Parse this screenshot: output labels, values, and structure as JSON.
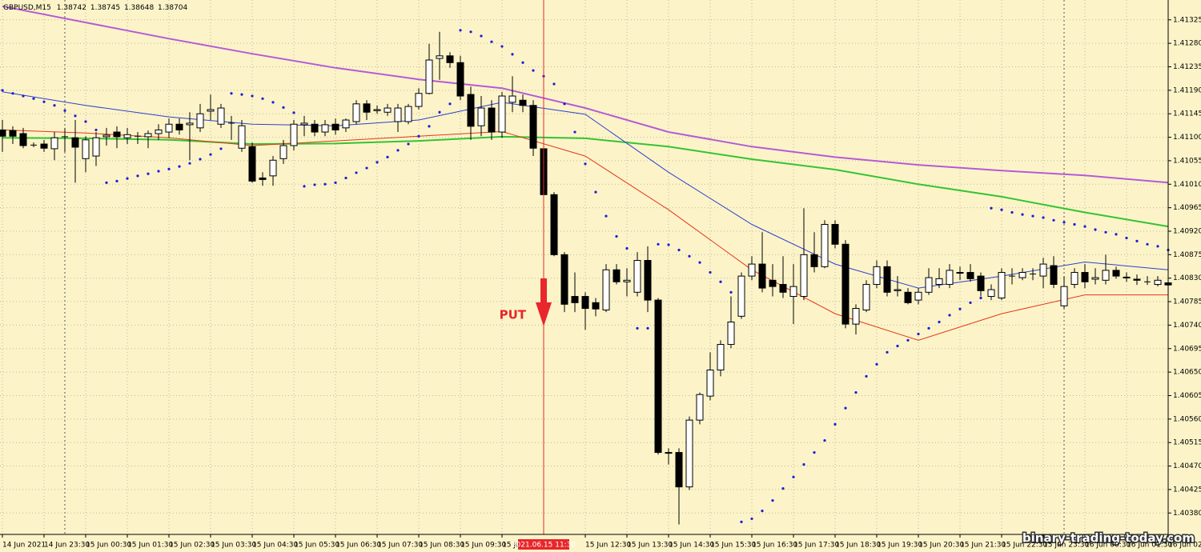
{
  "chart_data": {
    "type": "candlestick",
    "title": "GBPUSD,M15",
    "quote": [
      1.38742,
      1.38745,
      1.38648,
      1.38704
    ],
    "watermark": "binary-trading-today.com",
    "background": "#fcf4c8",
    "grid": true,
    "categories": [
      "14 Jun 2021",
      null,
      null,
      null,
      "14 Jun 23:30",
      null,
      null,
      null,
      "15 Jun 00:30",
      null,
      null,
      null,
      "15 Jun 01:30",
      null,
      null,
      null,
      "15 Jun 02:30",
      null,
      null,
      null,
      "15 Jun 03:30",
      null,
      null,
      null,
      "15 Jun 04:30",
      null,
      null,
      null,
      "15 Jun 05:30",
      null,
      null,
      null,
      "15 Jun 06:30",
      null,
      null,
      null,
      "15 Jun 07:30",
      null,
      null,
      null,
      "15 Jun 08:30",
      null,
      null,
      null,
      "15 Jun 09:30",
      null,
      null,
      null,
      "15 Jun 10:30",
      null,
      null,
      null,
      "2021.06.15 11:30",
      null,
      null,
      null,
      "15 Jun 12:30",
      null,
      null,
      null,
      "15 Jun 13:30",
      null,
      null,
      null,
      "15 Jun 14:30",
      null,
      null,
      null,
      "15 Jun 15:30",
      null,
      null,
      null,
      "15 Jun 16:30",
      null,
      null,
      null,
      "15 Jun 17:30",
      null,
      null,
      null,
      "15 Jun 18:30",
      null,
      null,
      null,
      "15 Jun 19:30",
      null,
      null,
      null,
      "15 Jun 20:30",
      null,
      null,
      null,
      "15 Jun 21:30",
      null,
      null,
      null,
      "15 Jun 22:30",
      null,
      null,
      null,
      "15 Jun 23:30",
      null,
      null,
      null,
      "16 Jun 00:30",
      null,
      null,
      null,
      "16 Jun 01:30",
      null,
      null,
      null,
      "16 Jun 02:30"
    ],
    "open": [
      1.41114,
      1.41113,
      1.41107,
      1.41085,
      1.41087,
      1.41078,
      1.41101,
      1.41099,
      1.41059,
      1.41064,
      1.41101,
      1.4111,
      1.41099,
      1.41102,
      1.41101,
      1.41107,
      1.4111,
      1.41125,
      1.41124,
      1.41118,
      1.4115,
      1.41125,
      1.41127,
      1.41079,
      1.41082,
      1.41022,
      1.41026,
      1.41059,
      1.41084,
      1.41124,
      1.41125,
      1.4111,
      1.41125,
      1.41118,
      1.4113,
      1.41164,
      1.41151,
      1.41148,
      1.4113,
      1.4113,
      1.41159,
      1.41184,
      1.41251,
      1.41256,
      1.41243,
      1.41182,
      1.41122,
      1.41156,
      1.4111,
      1.41167,
      1.41171,
      1.41161,
      1.41078,
      1.4099,
      1.40875,
      1.40795,
      1.40795,
      1.40783,
      1.40769,
      1.40846,
      1.40823,
      1.40803,
      1.40864,
      1.40788,
      1.40496,
      1.40496,
      1.4043,
      1.40558,
      1.40604,
      1.40654,
      1.40703,
      1.40757,
      1.40834,
      1.40857,
      1.40826,
      1.40818,
      1.40795,
      1.40795,
      1.40875,
      1.40852,
      1.40933,
      1.40895,
      1.40742,
      1.40769,
      1.40818,
      1.40852,
      1.40806,
      1.40803,
      1.40788,
      1.40803,
      1.40818,
      1.40818,
      1.40841,
      1.40841,
      1.40834,
      1.40795,
      1.40792,
      1.40834,
      1.40831,
      1.40838,
      1.40834,
      1.40854,
      1.40777,
      1.40818,
      1.40841,
      1.40828,
      1.40826,
      1.40845,
      1.40832,
      1.40828,
      1.40823,
      1.40818,
      1.40821
    ],
    "high": [
      1.41133,
      1.41121,
      1.41118,
      1.4109,
      1.41095,
      1.4111,
      1.41118,
      1.41133,
      1.41102,
      1.4111,
      1.41118,
      1.41121,
      1.41118,
      1.4111,
      1.41113,
      1.41125,
      1.41136,
      1.41136,
      1.41148,
      1.41164,
      1.41182,
      1.41164,
      1.41141,
      1.41133,
      1.4109,
      1.41033,
      1.41064,
      1.41095,
      1.41133,
      1.41141,
      1.41133,
      1.41133,
      1.41136,
      1.41136,
      1.41171,
      1.41171,
      1.41161,
      1.41164,
      1.41164,
      1.41164,
      1.41194,
      1.41279,
      1.41302,
      1.41263,
      1.41256,
      1.41197,
      1.41179,
      1.41171,
      1.41187,
      1.41217,
      1.41182,
      1.41171,
      1.41087,
      1.40995,
      1.4088,
      1.40841,
      1.40803,
      1.40792,
      1.40857,
      1.40857,
      1.40849,
      1.4088,
      1.40891,
      1.40792,
      1.40504,
      1.40504,
      1.40565,
      1.40611,
      1.40688,
      1.40711,
      1.40795,
      1.40841,
      1.40872,
      1.40918,
      1.40857,
      1.40872,
      1.40857,
      1.40964,
      1.40918,
      1.40941,
      1.40941,
      1.40903,
      1.4078,
      1.40826,
      1.40864,
      1.40864,
      1.40834,
      1.40811,
      1.40811,
      1.40849,
      1.40849,
      1.40857,
      1.40852,
      1.40857,
      1.40841,
      1.40818,
      1.40849,
      1.40849,
      1.40849,
      1.40849,
      1.40869,
      1.40872,
      1.40834,
      1.40849,
      1.40857,
      1.40849,
      1.40875,
      1.40852,
      1.40841,
      1.40837,
      1.40834,
      1.40834,
      1.40834
    ],
    "low": [
      1.41072,
      1.41087,
      1.41079,
      1.41081,
      1.41072,
      1.41056,
      1.41072,
      1.41013,
      1.41033,
      1.41045,
      1.41084,
      1.41079,
      1.41087,
      1.41087,
      1.41079,
      1.41095,
      1.41099,
      1.41105,
      1.41056,
      1.4111,
      1.41133,
      1.41118,
      1.41095,
      1.41072,
      1.41013,
      1.41007,
      1.41007,
      1.41049,
      1.41075,
      1.41102,
      1.41102,
      1.41102,
      1.41105,
      1.4111,
      1.41125,
      1.41133,
      1.41145,
      1.41141,
      1.4111,
      1.41125,
      1.41153,
      1.41182,
      1.4121,
      1.41233,
      1.41171,
      1.41095,
      1.41102,
      1.41095,
      1.41099,
      1.41148,
      1.41148,
      1.41064,
      1.40987,
      1.40872,
      1.40765,
      1.40765,
      1.40731,
      1.40757,
      1.40765,
      1.40818,
      1.40795,
      1.40795,
      1.40765,
      1.40492,
      1.40473,
      1.40358,
      1.40424,
      1.4055,
      1.40596,
      1.40642,
      1.40696,
      1.40752,
      1.40826,
      1.40803,
      1.40795,
      1.40792,
      1.40742,
      1.40788,
      1.40841,
      1.40849,
      1.40887,
      1.40734,
      1.40722,
      1.40765,
      1.40811,
      1.40795,
      1.40795,
      1.4078,
      1.4078,
      1.40798,
      1.40811,
      1.40811,
      1.40826,
      1.40823,
      1.40795,
      1.40788,
      1.40788,
      1.40818,
      1.40826,
      1.40826,
      1.40811,
      1.40811,
      1.40772,
      1.40811,
      1.40811,
      1.40818,
      1.40818,
      1.40829,
      1.40823,
      1.40817,
      1.40817,
      1.40814,
      1.40795
    ],
    "close": [
      1.41102,
      1.41102,
      1.41084,
      1.41085,
      1.41079,
      1.41099,
      1.41101,
      1.41081,
      1.41095,
      1.41099,
      1.41104,
      1.41101,
      1.41105,
      1.41102,
      1.41107,
      1.41114,
      1.41125,
      1.41114,
      1.41127,
      1.41145,
      1.41153,
      1.41156,
      1.41127,
      1.41122,
      1.41016,
      1.41019,
      1.41056,
      1.41084,
      1.41125,
      1.41127,
      1.4111,
      1.41124,
      1.41114,
      1.41133,
      1.41164,
      1.41148,
      1.41153,
      1.41156,
      1.41156,
      1.41159,
      1.41184,
      1.41248,
      1.41256,
      1.41243,
      1.41179,
      1.41121,
      1.41156,
      1.4111,
      1.41179,
      1.41179,
      1.41161,
      1.41079,
      1.4099,
      1.40875,
      1.4078,
      1.40783,
      1.40772,
      1.40771,
      1.40846,
      1.40823,
      1.40826,
      1.40864,
      1.40788,
      1.40496,
      1.40495,
      1.4043,
      1.40558,
      1.40607,
      1.40654,
      1.40703,
      1.40746,
      1.40834,
      1.40857,
      1.40811,
      1.40814,
      1.40803,
      1.40814,
      1.40875,
      1.40852,
      1.40933,
      1.40895,
      1.40742,
      1.40772,
      1.40818,
      1.40852,
      1.40803,
      1.40808,
      1.40783,
      1.40803,
      1.40831,
      1.40829,
      1.40845,
      1.4084,
      1.40829,
      1.40806,
      1.40808,
      1.40841,
      1.40834,
      1.40841,
      1.40838,
      1.40857,
      1.40818,
      1.40814,
      1.40841,
      1.40823,
      1.40831,
      1.40845,
      1.40834,
      1.40831,
      1.40826,
      1.40823,
      1.40826,
      1.40817
    ],
    "up_color": "#ffffff",
    "down_color": "#000000",
    "lines": [
      {
        "color": "#b65ad8",
        "width": 2,
        "x": [
          0,
          8,
          16,
          24,
          32,
          40,
          48,
          56,
          64,
          72,
          80,
          88,
          96,
          104,
          112
        ],
        "values": [
          1.41351,
          1.4132,
          1.41289,
          1.4126,
          1.41233,
          1.41211,
          1.41194,
          1.41156,
          1.4111,
          1.41082,
          1.41062,
          1.41047,
          1.41036,
          1.41027,
          1.41013
        ]
      },
      {
        "color": "#33c433",
        "width": 2,
        "x": [
          0,
          8,
          16,
          24,
          32,
          40,
          48,
          56,
          64,
          72,
          80,
          88,
          96,
          104,
          112
        ],
        "values": [
          1.41099,
          1.41098,
          1.41095,
          1.41087,
          1.41088,
          1.41093,
          1.41101,
          1.41098,
          1.41082,
          1.41058,
          1.41038,
          1.4101,
          1.40986,
          1.40956,
          1.40929
        ]
      },
      {
        "color": "#2d3fd2",
        "width": 1,
        "x": [
          0,
          8,
          16,
          24,
          32,
          40,
          48,
          56,
          64,
          72,
          80,
          88,
          96,
          104,
          112
        ],
        "values": [
          1.41187,
          1.41161,
          1.41139,
          1.41125,
          1.41122,
          1.41133,
          1.41167,
          1.41144,
          1.41033,
          1.40933,
          1.40857,
          1.40811,
          1.40834,
          1.40861,
          1.40846
        ]
      },
      {
        "color": "#e8341c",
        "width": 1,
        "x": [
          0,
          8,
          16,
          24,
          32,
          40,
          48,
          56,
          64,
          72,
          80,
          88,
          96,
          104,
          112
        ],
        "values": [
          1.41114,
          1.41108,
          1.41099,
          1.41084,
          1.41093,
          1.41102,
          1.41111,
          1.41064,
          1.40961,
          1.40846,
          1.40762,
          1.40711,
          1.40762,
          1.40798,
          1.40798
        ]
      }
    ],
    "sar": {
      "color": "#1c1cd8",
      "values": [
        1.4119,
        1.41184,
        1.41179,
        1.41174,
        1.41168,
        1.41161,
        1.41151,
        1.41141,
        1.4113,
        1.41114,
        1.41013,
        1.41016,
        1.41021,
        1.41026,
        1.4103,
        1.41035,
        1.41039,
        1.41044,
        1.4105,
        1.41058,
        1.41067,
        1.41078,
        1.41184,
        1.41182,
        1.41179,
        1.41174,
        1.41167,
        1.41157,
        1.41147,
        1.41006,
        1.41009,
        1.4101,
        1.41013,
        1.41022,
        1.41032,
        1.41041,
        1.41052,
        1.41062,
        1.41075,
        1.41087,
        1.41102,
        1.41121,
        1.41148,
        1.41164,
        1.41305,
        1.41302,
        1.41294,
        1.41283,
        1.41274,
        1.41259,
        1.41243,
        1.41228,
        1.41217,
        1.41202,
        1.41164,
        1.4111,
        1.41049,
        1.40995,
        1.40949,
        1.4091,
        1.40887,
        1.40734,
        1.40734,
        1.40895,
        1.40894,
        1.40884,
        1.40872,
        1.4086,
        1.40841,
        1.40823,
        1.40803,
        1.40363,
        1.40369,
        1.40384,
        1.40404,
        1.40427,
        1.40449,
        1.40473,
        1.40496,
        1.40519,
        1.4055,
        1.40581,
        1.40611,
        1.40642,
        1.40665,
        1.40688,
        1.407,
        1.40711,
        1.40723,
        1.40734,
        1.40746,
        1.40759,
        1.40771,
        1.40783,
        1.40792,
        1.40964,
        1.40961,
        1.40956,
        1.40952,
        1.40949,
        1.40946,
        1.40941,
        1.40937,
        1.40933,
        1.40929,
        1.40923,
        1.40918,
        1.40914,
        1.40907,
        1.40901,
        1.40895,
        1.40891,
        1.40884
      ]
    },
    "signal": {
      "label": "PUT",
      "at": "2021.06.15 11:30",
      "color": "#e8262b"
    },
    "ylim": [
      1.40339,
      1.41363
    ],
    "yticks": [
      1.41325,
      {
        "value": 1.4128,
        "label": "1.41280"
      },
      1.41235,
      {
        "value": 1.4119,
        "label": "1.41190"
      },
      1.41145,
      {
        "value": 1.411,
        "label": "1.41100"
      },
      1.41055,
      {
        "value": 1.4101,
        "label": "1.41010"
      },
      1.40965,
      {
        "value": 1.4092,
        "label": "1.40920"
      },
      1.40875,
      {
        "value": 1.4083,
        "label": "1.40830"
      },
      1.40785,
      {
        "value": 1.4074,
        "label": "1.40740"
      },
      1.40695,
      {
        "value": 1.4065,
        "label": "1.40650"
      },
      1.40605,
      {
        "value": 1.4056,
        "label": "1.40560"
      },
      1.40515,
      {
        "value": 1.4047,
        "label": "1.40470"
      },
      1.40425,
      {
        "value": 1.4038,
        "label": "1.40380"
      }
    ]
  }
}
